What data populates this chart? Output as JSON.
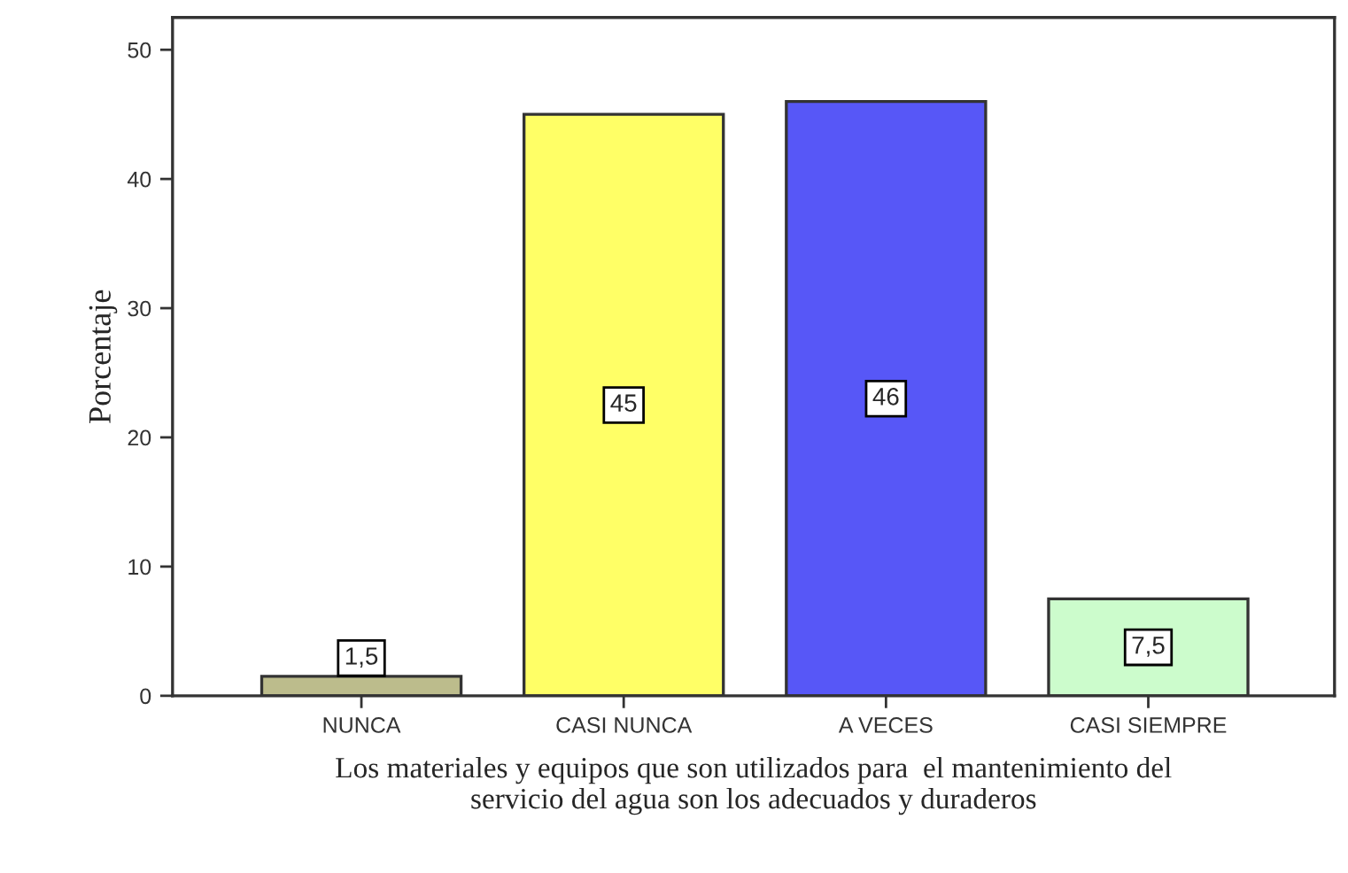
{
  "chart_data": {
    "type": "bar",
    "xlabel": "Los materiales y equipos que son utilizados para  el mantenimiento del\nservicio del agua son los adecuados y duraderos",
    "ylabel": "Porcentaje",
    "categories": [
      "NUNCA",
      "CASI NUNCA",
      "A VECES",
      "CASI SIEMPRE"
    ],
    "values": [
      1.5,
      45,
      46,
      7.5
    ],
    "colors": [
      "#bcbc8c",
      "#ffff66",
      "#5757f7",
      "#ccfccc"
    ],
    "value_labels": [
      "1,5",
      "45",
      "46",
      "7,5"
    ],
    "ylim": [
      0,
      52.5
    ],
    "yticks": [
      0,
      10,
      20,
      30,
      40,
      50
    ],
    "grid": false,
    "legend": false
  }
}
